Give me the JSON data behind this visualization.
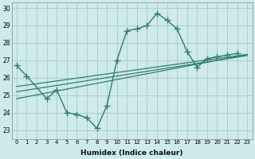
{
  "x": [
    0,
    1,
    2,
    3,
    4,
    5,
    6,
    7,
    8,
    9,
    10,
    11,
    12,
    13,
    14,
    15,
    16,
    17,
    18,
    19,
    20,
    21,
    22,
    23
  ],
  "series_main": [
    26.7,
    26.1,
    null,
    24.8,
    25.3,
    24.0,
    23.9,
    23.7,
    23.1,
    24.4,
    27.0,
    28.7,
    28.8,
    29.0,
    29.7,
    29.3,
    28.8,
    27.5,
    26.6,
    27.1,
    27.2,
    27.3,
    27.4,
    null
  ],
  "trend1": [
    25.5,
    25.58,
    25.66,
    25.74,
    25.82,
    25.9,
    25.98,
    26.06,
    26.14,
    26.22,
    26.3,
    26.38,
    26.46,
    26.54,
    26.62,
    26.7,
    26.78,
    26.86,
    26.94,
    27.02,
    27.1,
    27.18,
    27.26,
    27.34
  ],
  "trend2": [
    25.2,
    25.29,
    25.38,
    25.47,
    25.56,
    25.65,
    25.74,
    25.83,
    25.92,
    26.01,
    26.1,
    26.19,
    26.28,
    26.37,
    26.46,
    26.55,
    26.64,
    26.73,
    26.82,
    26.91,
    27.0,
    27.09,
    27.18,
    27.27
  ],
  "trend3": [
    24.8,
    24.91,
    25.02,
    25.13,
    25.24,
    25.35,
    25.46,
    25.57,
    25.68,
    25.79,
    25.9,
    26.01,
    26.12,
    26.23,
    26.34,
    26.45,
    26.56,
    26.67,
    26.78,
    26.89,
    27.0,
    27.11,
    27.22,
    27.33
  ],
  "line_color": "#2e7d72",
  "bg_color": "#ceeaea",
  "grid_color": "#aecece",
  "xlabel": "Humidex (Indice chaleur)",
  "ylim": [
    22.5,
    30.3
  ],
  "yticks": [
    23,
    24,
    25,
    26,
    27,
    28,
    29,
    30
  ],
  "xticks": [
    0,
    1,
    2,
    3,
    4,
    5,
    6,
    7,
    8,
    9,
    10,
    11,
    12,
    13,
    14,
    15,
    16,
    17,
    18,
    19,
    20,
    21,
    22,
    23
  ],
  "markersize": 3.0,
  "linewidth": 1.0
}
